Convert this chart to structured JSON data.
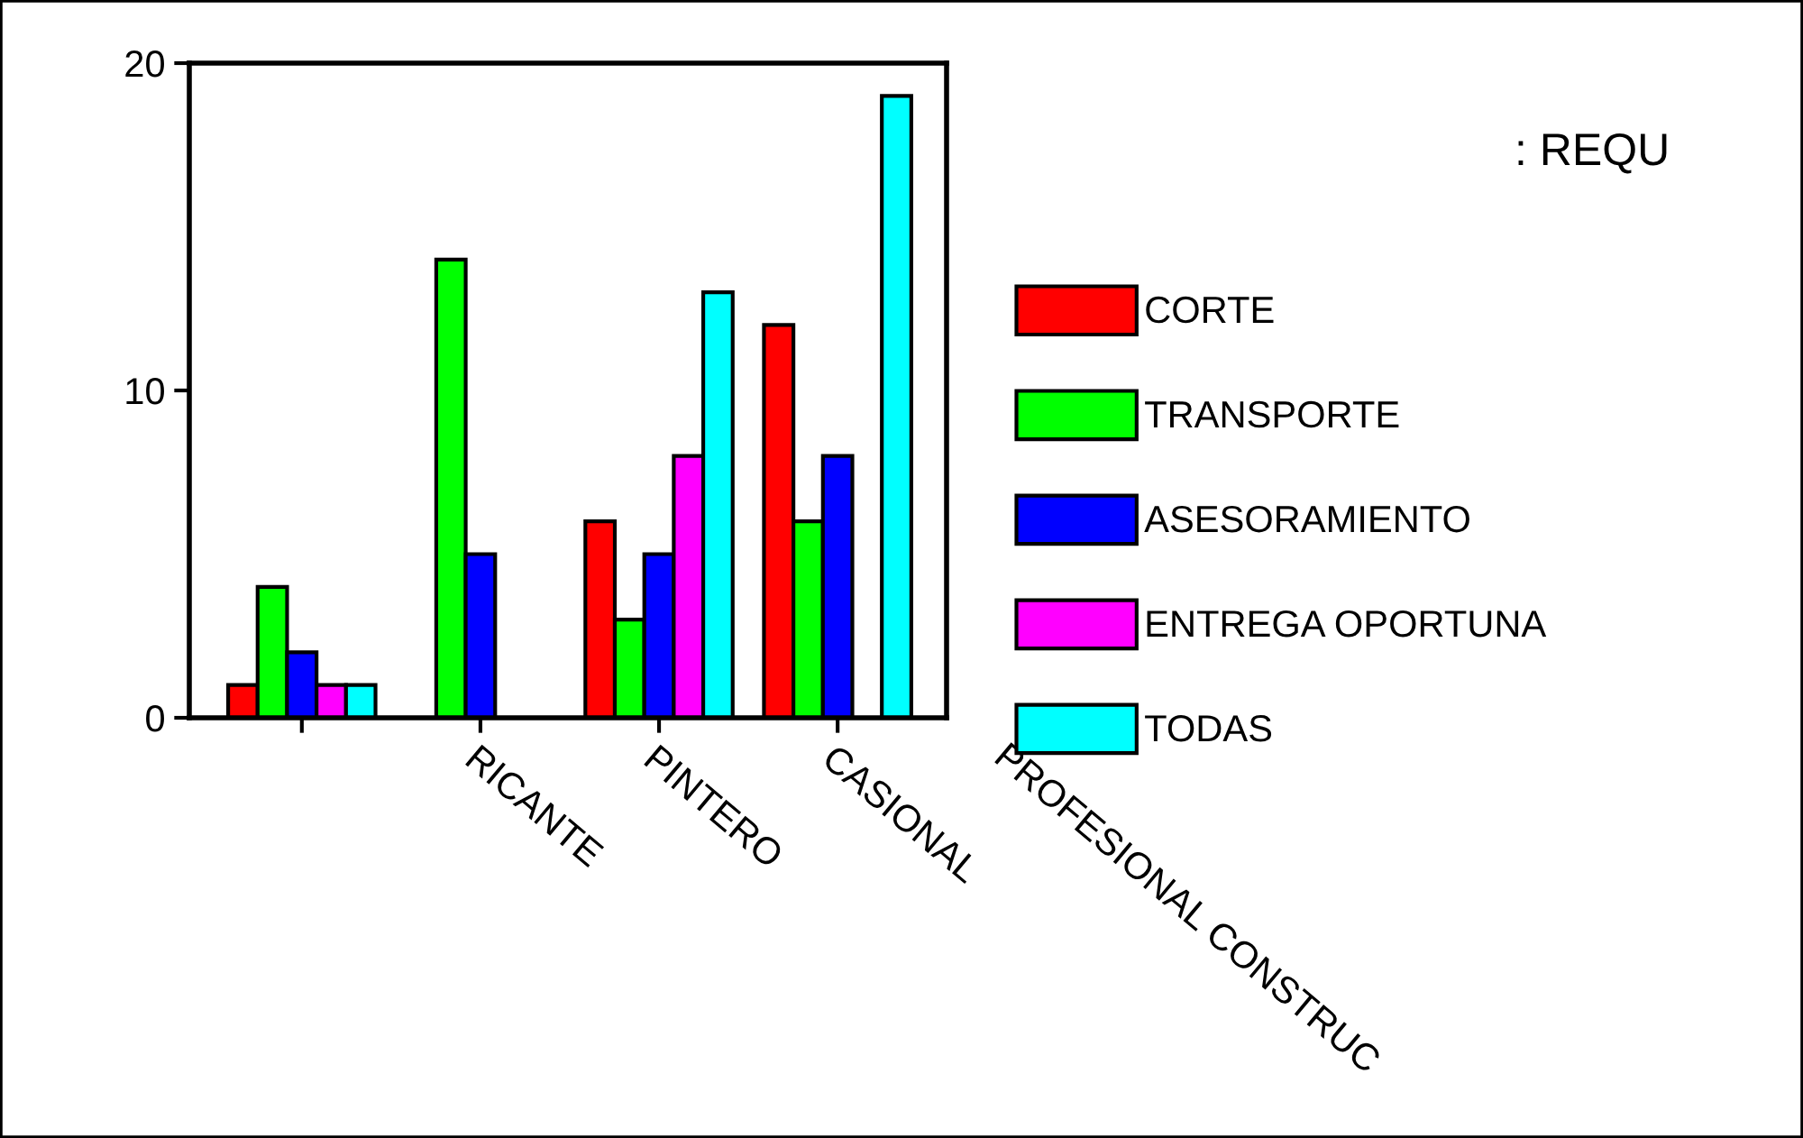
{
  "chart_data": {
    "type": "bar",
    "title": ": REQU",
    "categories": [
      null,
      "RICANTE",
      "PINTERO",
      "CASIONAL"
    ],
    "series": [
      {
        "name": "CORTE",
        "color": "#ff0000",
        "values": [
          1,
          null,
          6,
          12
        ]
      },
      {
        "name": "TRANSPORTE",
        "color": "#00ff00",
        "values": [
          4,
          14,
          3,
          6
        ]
      },
      {
        "name": "ASESORAMIENTO",
        "color": "#0000ff",
        "values": [
          2,
          5,
          5,
          8
        ]
      },
      {
        "name": "ENTREGA OPORTUNA",
        "color": "#ff00ff",
        "values": [
          1,
          null,
          8,
          null
        ]
      },
      {
        "name": "TODAS",
        "color": "#00ffff",
        "values": [
          1,
          null,
          13,
          19
        ]
      }
    ],
    "annotations": [
      "PROFESIONAL CONSTRUC"
    ],
    "ylim": [
      0,
      20
    ],
    "yticks": [
      0,
      10,
      20
    ],
    "grid": false,
    "legend": "right"
  }
}
